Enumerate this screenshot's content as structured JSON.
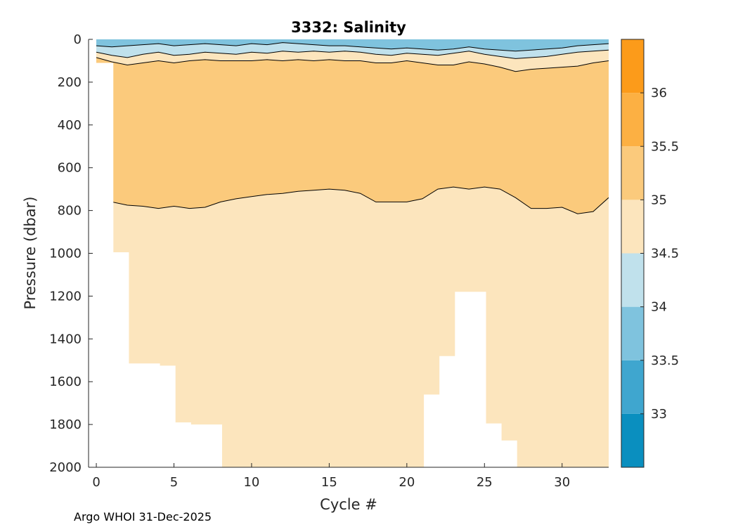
{
  "chart_data": {
    "type": "heatmap",
    "title": "3332:  Salinity",
    "xlabel": "Cycle #",
    "ylabel": "Pressure (dbar)",
    "xlim": [
      -0.5,
      33
    ],
    "ylim": [
      0,
      2000
    ],
    "y_reversed": true,
    "xticks": [
      0,
      5,
      10,
      15,
      20,
      25,
      30
    ],
    "yticks": [
      0,
      200,
      400,
      600,
      800,
      1000,
      1200,
      1400,
      1600,
      1800,
      2000
    ],
    "colorbar": {
      "range": [
        32.5,
        36.5
      ],
      "ticks": [
        33,
        33.5,
        34,
        34.5,
        35,
        35.5,
        36
      ],
      "bands": [
        {
          "from": 32.5,
          "to": 33.0,
          "color": "#0a8fbf"
        },
        {
          "from": 33.0,
          "to": 33.5,
          "color": "#3fa6cf"
        },
        {
          "from": 33.5,
          "to": 34.0,
          "color": "#7fc3de"
        },
        {
          "from": 34.0,
          "to": 34.5,
          "color": "#c0e1ec"
        },
        {
          "from": 34.5,
          "to": 35.0,
          "color": "#fce5bd"
        },
        {
          "from": 35.0,
          "to": 35.5,
          "color": "#fbca7c"
        },
        {
          "from": 35.5,
          "to": 36.0,
          "color": "#fcb043"
        },
        {
          "from": 36.0,
          "to": 36.5,
          "color": "#fc9b1a"
        }
      ]
    },
    "profile_depth_max": [
      {
        "cycle": 0,
        "pressure": 110
      },
      {
        "cycle": 1,
        "pressure": 995
      },
      {
        "cycle": 2,
        "pressure": 1515
      },
      {
        "cycle": 3,
        "pressure": 1515
      },
      {
        "cycle": 4,
        "pressure": 1525
      },
      {
        "cycle": 5,
        "pressure": 1790
      },
      {
        "cycle": 6,
        "pressure": 1800
      },
      {
        "cycle": 7,
        "pressure": 1800
      },
      {
        "cycle": 8,
        "pressure": 2000
      },
      {
        "cycle": 21,
        "pressure": 1660
      },
      {
        "cycle": 22,
        "pressure": 1480
      },
      {
        "cycle": 23,
        "pressure": 1180
      },
      {
        "cycle": 24,
        "pressure": 1180
      },
      {
        "cycle": 25,
        "pressure": 1795
      },
      {
        "cycle": 26,
        "pressure": 1875
      },
      {
        "cycle": 27,
        "pressure": 2000
      }
    ],
    "contour_35": [
      [
        1,
        760
      ],
      [
        2,
        775
      ],
      [
        3,
        780
      ],
      [
        4,
        790
      ],
      [
        5,
        780
      ],
      [
        6,
        790
      ],
      [
        7,
        785
      ],
      [
        8,
        760
      ],
      [
        9,
        745
      ],
      [
        10,
        735
      ],
      [
        11,
        725
      ],
      [
        12,
        720
      ],
      [
        13,
        710
      ],
      [
        14,
        705
      ],
      [
        15,
        700
      ],
      [
        16,
        705
      ],
      [
        17,
        720
      ],
      [
        18,
        760
      ],
      [
        19,
        760
      ],
      [
        20,
        760
      ],
      [
        21,
        745
      ],
      [
        22,
        700
      ],
      [
        23,
        690
      ],
      [
        24,
        700
      ],
      [
        25,
        690
      ],
      [
        26,
        700
      ],
      [
        27,
        740
      ],
      [
        28,
        790
      ],
      [
        29,
        790
      ],
      [
        30,
        785
      ],
      [
        31,
        815
      ],
      [
        32,
        805
      ],
      [
        33,
        740
      ]
    ],
    "layer_34_5_base": [
      [
        0,
        85
      ],
      [
        1,
        105
      ],
      [
        2,
        120
      ],
      [
        3,
        110
      ],
      [
        4,
        100
      ],
      [
        5,
        110
      ],
      [
        6,
        100
      ],
      [
        7,
        95
      ],
      [
        8,
        100
      ],
      [
        9,
        100
      ],
      [
        10,
        100
      ],
      [
        11,
        95
      ],
      [
        12,
        100
      ],
      [
        13,
        95
      ],
      [
        14,
        100
      ],
      [
        15,
        95
      ],
      [
        16,
        100
      ],
      [
        17,
        100
      ],
      [
        18,
        110
      ],
      [
        19,
        110
      ],
      [
        20,
        100
      ],
      [
        21,
        110
      ],
      [
        22,
        120
      ],
      [
        23,
        120
      ],
      [
        24,
        105
      ],
      [
        25,
        115
      ],
      [
        26,
        130
      ],
      [
        27,
        150
      ],
      [
        28,
        140
      ],
      [
        29,
        135
      ],
      [
        30,
        130
      ],
      [
        31,
        125
      ],
      [
        32,
        110
      ],
      [
        33,
        100
      ]
    ],
    "layer_34_base": [
      [
        0,
        60
      ],
      [
        1,
        75
      ],
      [
        2,
        85
      ],
      [
        3,
        70
      ],
      [
        4,
        60
      ],
      [
        5,
        75
      ],
      [
        6,
        70
      ],
      [
        7,
        60
      ],
      [
        8,
        65
      ],
      [
        9,
        70
      ],
      [
        10,
        60
      ],
      [
        11,
        65
      ],
      [
        12,
        55
      ],
      [
        13,
        60
      ],
      [
        14,
        55
      ],
      [
        15,
        60
      ],
      [
        16,
        55
      ],
      [
        17,
        60
      ],
      [
        18,
        70
      ],
      [
        19,
        75
      ],
      [
        20,
        65
      ],
      [
        21,
        70
      ],
      [
        22,
        75
      ],
      [
        23,
        65
      ],
      [
        24,
        55
      ],
      [
        25,
        70
      ],
      [
        26,
        80
      ],
      [
        27,
        90
      ],
      [
        28,
        85
      ],
      [
        29,
        80
      ],
      [
        30,
        70
      ],
      [
        31,
        60
      ],
      [
        32,
        55
      ],
      [
        33,
        50
      ]
    ],
    "layer_33_5_base": [
      [
        0,
        30
      ],
      [
        1,
        35
      ],
      [
        2,
        30
      ],
      [
        3,
        25
      ],
      [
        4,
        20
      ],
      [
        5,
        30
      ],
      [
        6,
        25
      ],
      [
        7,
        20
      ],
      [
        8,
        25
      ],
      [
        9,
        30
      ],
      [
        10,
        20
      ],
      [
        11,
        25
      ],
      [
        12,
        15
      ],
      [
        13,
        20
      ],
      [
        14,
        25
      ],
      [
        15,
        30
      ],
      [
        16,
        30
      ],
      [
        17,
        35
      ],
      [
        18,
        40
      ],
      [
        19,
        45
      ],
      [
        20,
        40
      ],
      [
        21,
        45
      ],
      [
        22,
        50
      ],
      [
        23,
        45
      ],
      [
        24,
        35
      ],
      [
        25,
        45
      ],
      [
        26,
        50
      ],
      [
        27,
        55
      ],
      [
        28,
        50
      ],
      [
        29,
        45
      ],
      [
        30,
        40
      ],
      [
        31,
        30
      ],
      [
        32,
        25
      ],
      [
        33,
        20
      ]
    ]
  },
  "footer_text": "Argo WHOI 31-Dec-2025"
}
